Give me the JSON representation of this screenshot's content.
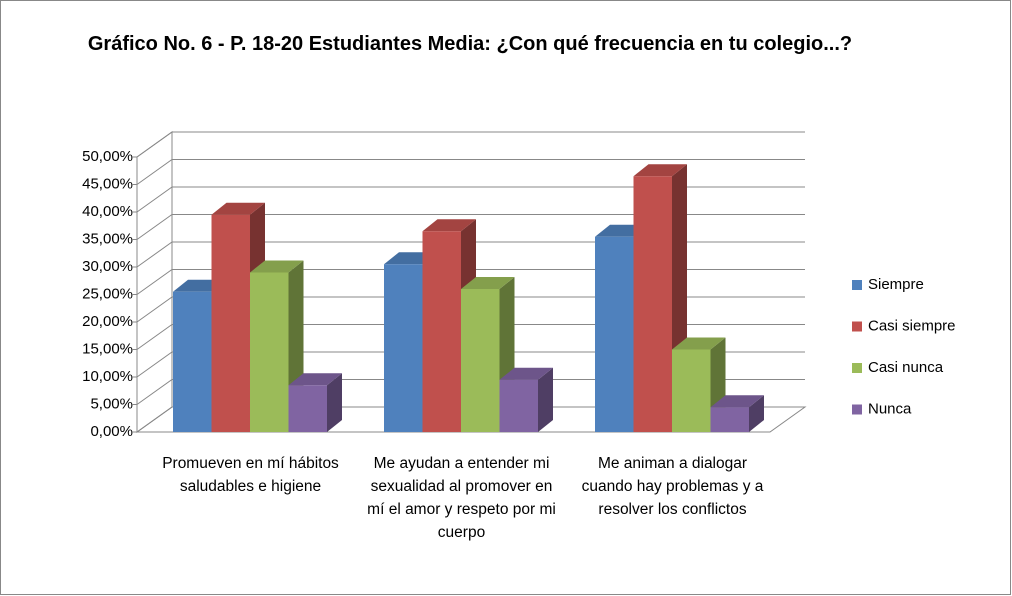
{
  "chart_data": {
    "type": "bar3d",
    "title": "Gráfico No. 6 - P. 18-20 Estudiantes Media: ¿Con qué frecuencia en tu colegio...?",
    "categories": [
      "Promueven en mí hábitos saludables e higiene",
      "Me ayudan a entender mi sexualidad al promover en mí el amor y respeto por mi cuerpo",
      "Me animan a dialogar cuando hay problemas y a resolver los conflictos"
    ],
    "series": [
      {
        "name": "Siempre",
        "color": "#4f81bd",
        "values": [
          25.5,
          30.5,
          35.5
        ]
      },
      {
        "name": "Casi siempre",
        "color": "#c0504d",
        "values": [
          39.5,
          36.5,
          46.5
        ]
      },
      {
        "name": "Casi nunca",
        "color": "#9bbb59",
        "values": [
          29,
          26,
          15
        ]
      },
      {
        "name": "Nunca",
        "color": "#8064a2",
        "values": [
          8.5,
          9.5,
          4.5
        ]
      }
    ],
    "ylim": [
      0,
      50
    ],
    "yticks": [
      {
        "value": 0,
        "label": "0,00%"
      },
      {
        "value": 5,
        "label": "5,00%"
      },
      {
        "value": 10,
        "label": "10,00%"
      },
      {
        "value": 15,
        "label": "15,00%"
      },
      {
        "value": 20,
        "label": "20,00%"
      },
      {
        "value": 25,
        "label": "25,00%"
      },
      {
        "value": 30,
        "label": "30,00%"
      },
      {
        "value": 35,
        "label": "35,00%"
      },
      {
        "value": 40,
        "label": "40,00%"
      },
      {
        "value": 45,
        "label": "45,00%"
      },
      {
        "value": 50,
        "label": "50,00%"
      }
    ],
    "legend": "right",
    "grid": true
  }
}
